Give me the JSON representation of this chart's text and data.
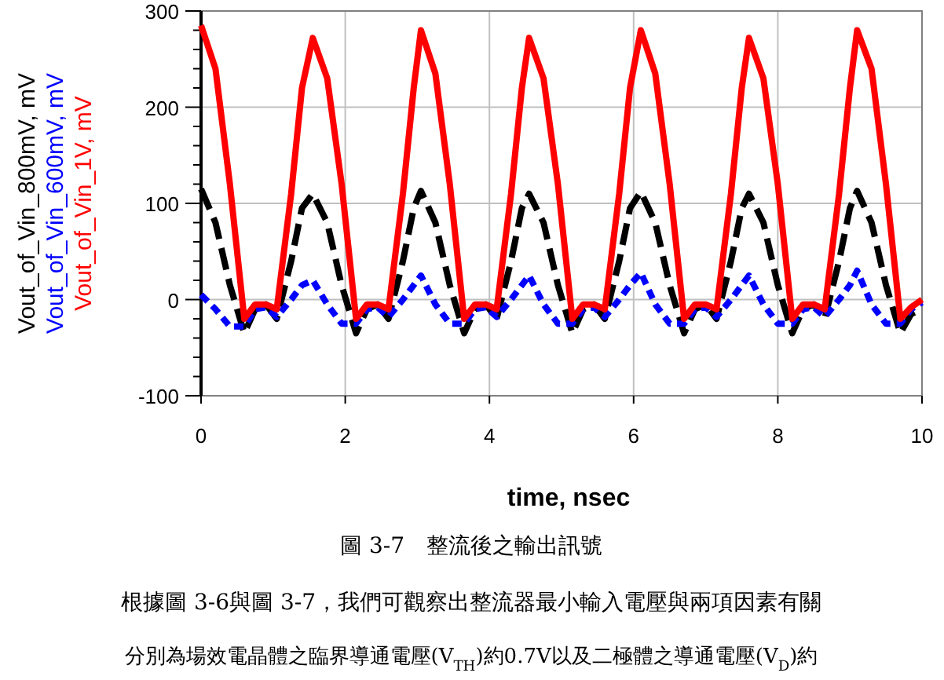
{
  "chart_data": {
    "type": "line",
    "xlabel": "time, nsec",
    "x": [
      0,
      0.2,
      0.4,
      0.6,
      0.75,
      0.9,
      1.05,
      1.25,
      1.4,
      1.55,
      1.75,
      1.95,
      2.15,
      2.3,
      2.45,
      2.6,
      2.8,
      2.95,
      3.05,
      3.25,
      3.45,
      3.65,
      3.8,
      3.95,
      4.1,
      4.3,
      4.45,
      4.55,
      4.75,
      4.95,
      5.15,
      5.3,
      5.45,
      5.6,
      5.8,
      5.95,
      6.1,
      6.3,
      6.5,
      6.7,
      6.85,
      7.0,
      7.15,
      7.35,
      7.5,
      7.6,
      7.8,
      8.0,
      8.2,
      8.35,
      8.5,
      8.65,
      8.85,
      9.0,
      9.1,
      9.3,
      9.5,
      9.7,
      9.85,
      10.0
    ],
    "series": [
      {
        "name": "Vout_of_Vin_800mV, mV",
        "color": "#000000",
        "line_style": "dashed",
        "values": [
          115,
          80,
          15,
          -35,
          -10,
          -5,
          -20,
          40,
          95,
          110,
          80,
          15,
          -35,
          -10,
          -5,
          -20,
          40,
          95,
          113,
          80,
          15,
          -35,
          -10,
          -5,
          -20,
          40,
          95,
          110,
          80,
          15,
          -35,
          -10,
          -5,
          -20,
          40,
          95,
          112,
          80,
          15,
          -35,
          -10,
          -5,
          -20,
          40,
          95,
          110,
          80,
          15,
          -35,
          -10,
          -5,
          -20,
          40,
          95,
          113,
          80,
          15,
          -35,
          -15,
          -10
        ]
      },
      {
        "name": "Vout_of_Vin_600mV, mV",
        "color": "#0000ff",
        "line_style": "dotted",
        "values": [
          5,
          -10,
          -28,
          -28,
          -10,
          -8,
          -18,
          0,
          15,
          20,
          -5,
          -25,
          -25,
          -10,
          -8,
          -18,
          0,
          15,
          25,
          -5,
          -25,
          -25,
          -10,
          -8,
          -18,
          0,
          15,
          25,
          -5,
          -25,
          -25,
          -10,
          -8,
          -18,
          0,
          15,
          28,
          -5,
          -25,
          -25,
          -10,
          -8,
          -18,
          0,
          15,
          25,
          -5,
          -25,
          -25,
          -10,
          -8,
          -18,
          0,
          15,
          30,
          -5,
          -25,
          -25,
          -10,
          -3
        ]
      },
      {
        "name": "Vout_of_Vin_1V, mV",
        "color": "#ff0000",
        "line_style": "solid",
        "values": [
          285,
          240,
          120,
          -20,
          -5,
          -5,
          -10,
          110,
          220,
          272,
          230,
          120,
          -20,
          -5,
          -5,
          -10,
          110,
          220,
          280,
          235,
          120,
          -20,
          -5,
          -5,
          -10,
          110,
          220,
          272,
          230,
          120,
          -20,
          -5,
          -5,
          -10,
          110,
          220,
          280,
          235,
          120,
          -20,
          -5,
          -5,
          -10,
          110,
          220,
          272,
          230,
          120,
          -20,
          -5,
          -5,
          -10,
          110,
          220,
          280,
          240,
          120,
          -20,
          -8,
          0
        ]
      }
    ],
    "xlim": [
      0,
      10
    ],
    "xticks": [
      0,
      2,
      4,
      6,
      8,
      10
    ],
    "ylim": [
      -100,
      300
    ],
    "yticks": [
      -100,
      0,
      100,
      200,
      300
    ],
    "grid": true,
    "annotations": [
      "圖 3-7　整流後之輸出訊號",
      "根據圖 3-6與圖 3-7，我們可觀察出整流器最小輸入電壓與兩項因素有關",
      "分別為場效電晶體之臨界導通電壓(V$_{TH}$)約0.7V以及二極體之導通電壓(V$_{D}$)約"
    ]
  }
}
